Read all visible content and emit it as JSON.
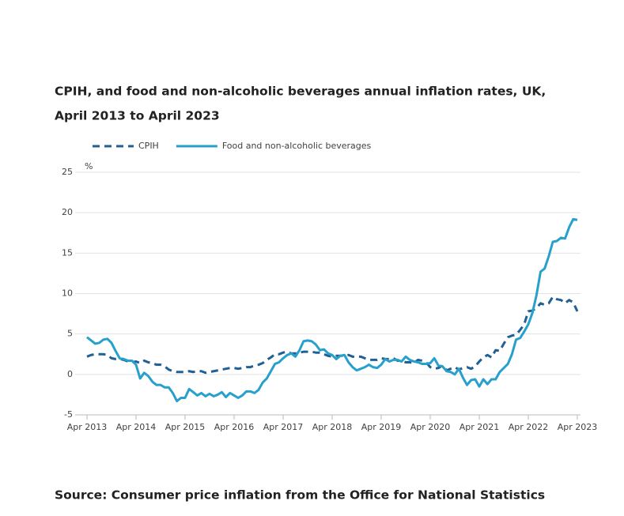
{
  "chart_data": {
    "type": "line",
    "title": [
      "CPIH, and food and non-alcoholic beverages annual inflation rates, UK,",
      "April 2013 to April 2023"
    ],
    "y_label": "%",
    "source": "Source: Consumer price inflation from the Office for National Statistics",
    "categories": [
      "Apr 2013",
      null,
      null,
      null,
      null,
      null,
      null,
      null,
      null,
      null,
      null,
      null,
      "Apr 2014",
      null,
      null,
      null,
      null,
      null,
      null,
      null,
      null,
      null,
      null,
      null,
      "Apr 2015",
      null,
      null,
      null,
      null,
      null,
      null,
      null,
      null,
      null,
      null,
      null,
      "Apr 2016",
      null,
      null,
      null,
      null,
      null,
      null,
      null,
      null,
      null,
      null,
      null,
      "Apr 2017",
      null,
      null,
      null,
      null,
      null,
      null,
      null,
      null,
      null,
      null,
      null,
      "Apr 2018",
      null,
      null,
      null,
      null,
      null,
      null,
      null,
      null,
      null,
      null,
      null,
      "Apr 2019",
      null,
      null,
      null,
      null,
      null,
      null,
      null,
      null,
      null,
      null,
      null,
      "Apr 2020",
      null,
      null,
      null,
      null,
      null,
      null,
      null,
      null,
      null,
      null,
      null,
      "Apr 2021",
      null,
      null,
      null,
      null,
      null,
      null,
      null,
      null,
      null,
      null,
      null,
      "Apr 2022",
      null,
      null,
      null,
      null,
      null,
      null,
      null,
      null,
      null,
      null,
      null,
      "Apr 2023"
    ],
    "series": [
      {
        "name": "CPIH",
        "color": "#206095",
        "dashed": true,
        "values": [
          2.2,
          2.4,
          2.5,
          2.5,
          2.5,
          2.4,
          2.0,
          1.9,
          1.9,
          1.8,
          1.6,
          1.5,
          1.6,
          1.4,
          1.7,
          1.5,
          1.4,
          1.2,
          1.2,
          1.0,
          0.6,
          0.4,
          0.3,
          0.3,
          0.3,
          0.4,
          0.3,
          0.4,
          0.4,
          0.2,
          0.3,
          0.4,
          0.5,
          0.6,
          0.7,
          0.8,
          0.8,
          0.7,
          0.8,
          0.9,
          0.9,
          1.1,
          1.2,
          1.4,
          1.8,
          2.1,
          2.5,
          2.5,
          2.7,
          2.8,
          2.6,
          2.6,
          2.7,
          2.8,
          2.8,
          2.8,
          2.7,
          2.7,
          2.5,
          2.3,
          2.2,
          2.3,
          2.3,
          2.3,
          2.4,
          2.2,
          2.2,
          2.2,
          2.0,
          1.8,
          1.8,
          1.8,
          2.0,
          1.9,
          1.9,
          2.0,
          1.7,
          1.7,
          1.5,
          1.5,
          1.4,
          1.8,
          1.7,
          1.5,
          0.9,
          0.7,
          0.8,
          1.1,
          0.5,
          0.7,
          0.9,
          0.6,
          0.8,
          0.9,
          0.7,
          1.0,
          1.6,
          2.1,
          2.4,
          2.1,
          3.0,
          2.9,
          3.8,
          4.6,
          4.8,
          4.9,
          5.5,
          6.2,
          7.8,
          7.9,
          8.2,
          8.8,
          8.6,
          8.8,
          9.6,
          9.3,
          9.2,
          8.8,
          9.2,
          8.9,
          7.8
        ]
      },
      {
        "name": "Food and non-alcoholic beverages",
        "color": "#27a0cc",
        "dashed": false,
        "values": [
          4.6,
          4.2,
          3.8,
          3.9,
          4.3,
          4.4,
          3.9,
          2.9,
          2.0,
          1.9,
          1.7,
          1.7,
          1.2,
          -0.5,
          0.2,
          -0.2,
          -0.9,
          -1.3,
          -1.3,
          -1.6,
          -1.6,
          -2.3,
          -3.3,
          -2.9,
          -2.9,
          -1.8,
          -2.2,
          -2.6,
          -2.3,
          -2.7,
          -2.4,
          -2.7,
          -2.5,
          -2.2,
          -2.8,
          -2.3,
          -2.6,
          -2.9,
          -2.6,
          -2.1,
          -2.1,
          -2.3,
          -1.9,
          -1.0,
          -0.5,
          0.4,
          1.3,
          1.5,
          2.0,
          2.4,
          2.6,
          2.2,
          3.0,
          4.1,
          4.2,
          4.1,
          3.7,
          3.0,
          3.1,
          2.6,
          2.4,
          1.9,
          2.3,
          2.4,
          1.5,
          0.9,
          0.5,
          0.7,
          0.9,
          1.2,
          0.9,
          0.8,
          1.2,
          1.9,
          1.6,
          1.8,
          1.8,
          1.6,
          2.2,
          1.8,
          1.6,
          1.5,
          1.3,
          1.3,
          1.4,
          2.0,
          1.1,
          1.0,
          0.4,
          0.3,
          0.0,
          0.7,
          -0.4,
          -1.3,
          -0.7,
          -0.6,
          -1.5,
          -0.6,
          -1.2,
          -0.6,
          -0.6,
          0.3,
          0.8,
          1.3,
          2.5,
          4.3,
          4.5,
          5.3,
          6.2,
          7.6,
          9.8,
          12.7,
          13.1,
          14.6,
          16.4,
          16.5,
          16.9,
          16.8,
          18.2,
          19.2,
          19.1
        ]
      }
    ],
    "ylim": [
      -5,
      25
    ],
    "yticks": [
      -5,
      0,
      5,
      10,
      15,
      20,
      25
    ],
    "grid": true
  }
}
